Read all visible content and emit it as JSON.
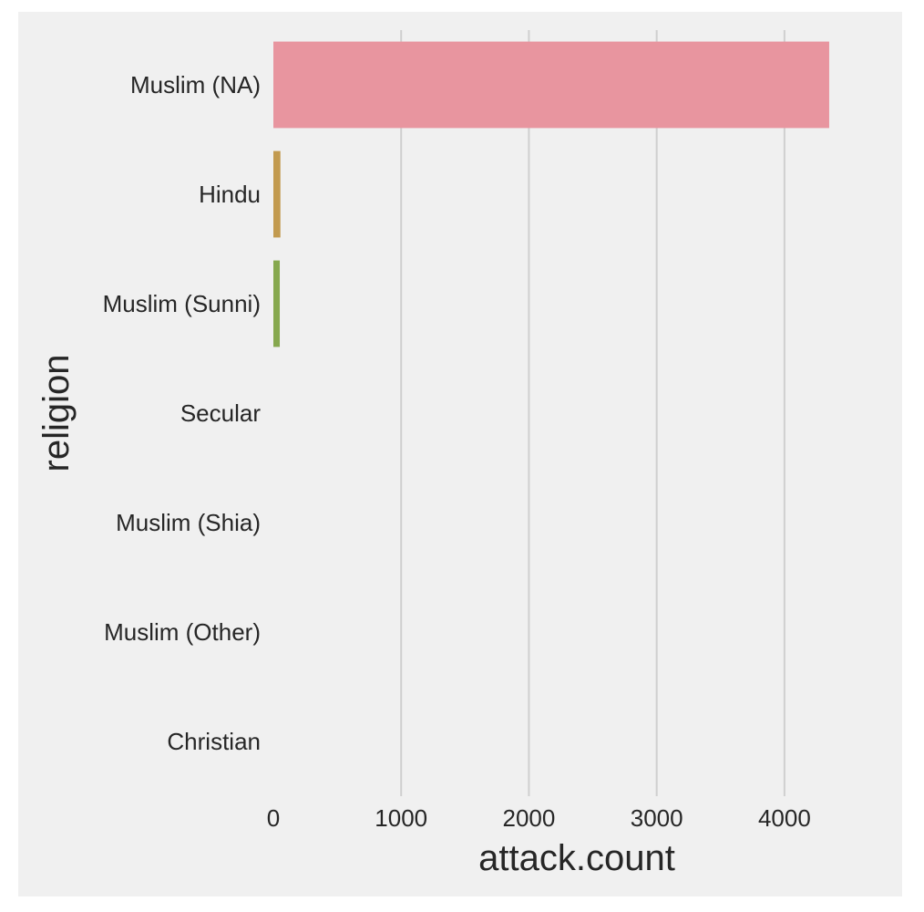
{
  "chart_data": {
    "type": "bar",
    "orientation": "horizontal",
    "categories": [
      "Muslim (NA)",
      "Hindu",
      "Muslim (Sunni)",
      "Secular",
      "Muslim (Shia)",
      "Muslim (Other)",
      "Christian"
    ],
    "values": [
      4350,
      55,
      50,
      0,
      0,
      0,
      0
    ],
    "colors": [
      "#e8959f",
      "#c29a4f",
      "#86a84e",
      "#57b28b",
      "#5aaec1",
      "#9aa4de",
      "#e193d8"
    ],
    "xlabel": "attack.count",
    "ylabel": "religion",
    "xlim": [
      0,
      4550
    ],
    "xticks": [
      0,
      1000,
      2000,
      3000,
      4000
    ],
    "xtick_labels": [
      "0",
      "1000",
      "2000",
      "3000",
      "4000"
    ],
    "grid": "vertical"
  }
}
